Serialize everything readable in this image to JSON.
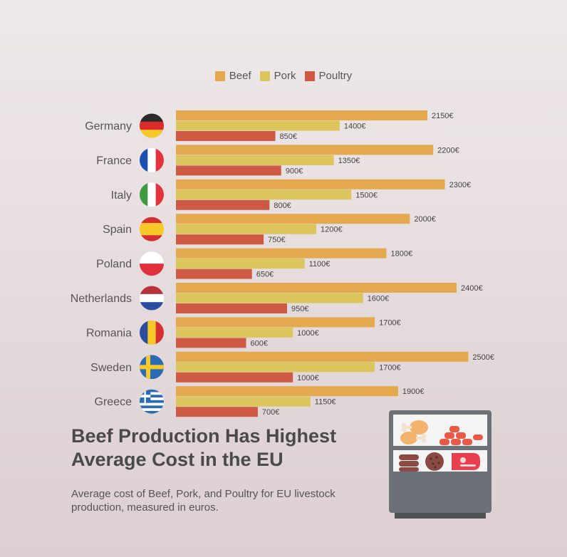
{
  "legend": {
    "beef": "Beef",
    "pork": "Pork",
    "poultry": "Poultry"
  },
  "colors": {
    "beef": "#e4a94f",
    "pork": "#dcc55c",
    "poultry": "#cf5a43",
    "label_text": "#555555",
    "title_text": "#4a4a4a"
  },
  "title": "Beef Production Has Highest Average Cost in the EU",
  "subtitle": "Average cost of Beef, Pork, and Poultry for EU livestock production, measured in euros.",
  "chart_data": {
    "type": "bar",
    "orientation": "horizontal",
    "categories": [
      "Germany",
      "France",
      "Italy",
      "Spain",
      "Poland",
      "Netherlands",
      "Romania",
      "Sweden",
      "Greece"
    ],
    "series": [
      {
        "name": "Beef",
        "values": [
          2150,
          2200,
          2300,
          2000,
          1800,
          2400,
          1700,
          2500,
          1900
        ]
      },
      {
        "name": "Pork",
        "values": [
          1400,
          1350,
          1500,
          1200,
          1100,
          1600,
          1000,
          1700,
          1150
        ]
      },
      {
        "name": "Poultry",
        "values": [
          850,
          900,
          800,
          750,
          650,
          950,
          600,
          1000,
          700
        ]
      }
    ],
    "value_suffix": "€",
    "xlim": [
      0,
      2500
    ],
    "legend_position": "top-center",
    "grid": false
  },
  "flags": [
    "germany-flag-icon",
    "france-flag-icon",
    "italy-flag-icon",
    "spain-flag-icon",
    "poland-flag-icon",
    "netherlands-flag-icon",
    "romania-flag-icon",
    "sweden-flag-icon",
    "greece-flag-icon"
  ],
  "illustration": "meat-display-cabinet-icon"
}
